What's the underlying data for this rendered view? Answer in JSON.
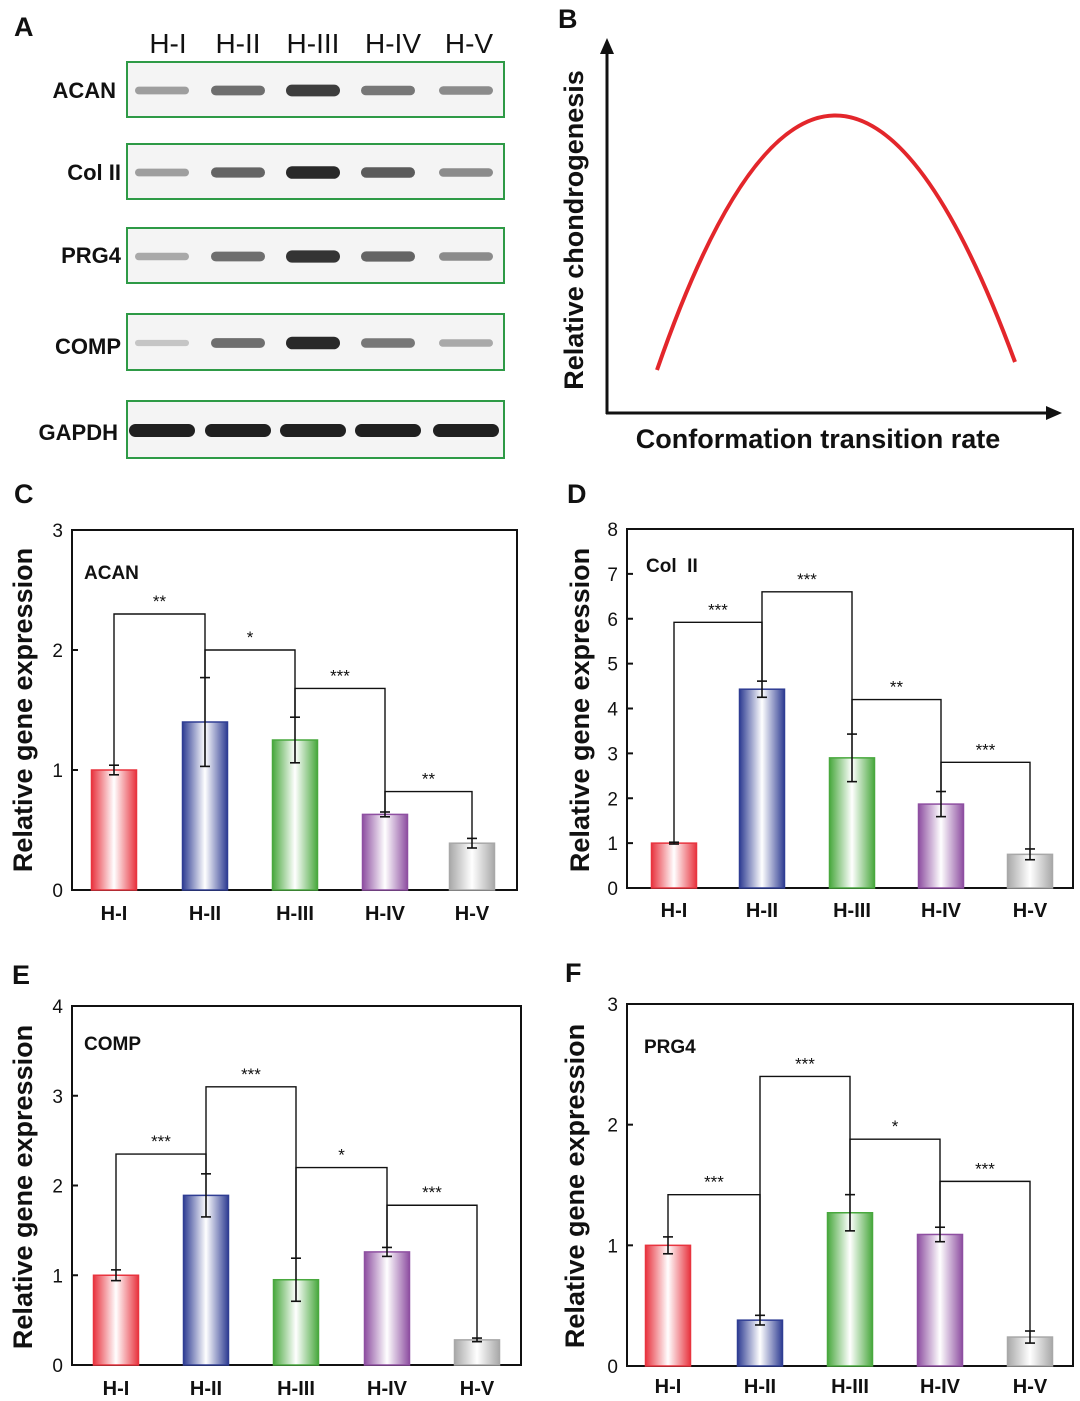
{
  "panel_a": {
    "letter": "A",
    "lanes": [
      "H-I",
      "H-II",
      "H-III",
      "H-IV",
      "H-V"
    ],
    "rows": [
      {
        "label": "ACAN",
        "intensity": [
          0.35,
          0.6,
          0.85,
          0.55,
          0.45
        ]
      },
      {
        "label": "Col II",
        "intensity": [
          0.35,
          0.65,
          0.95,
          0.7,
          0.45
        ]
      },
      {
        "label": "PRG4",
        "intensity": [
          0.3,
          0.6,
          0.9,
          0.65,
          0.45
        ]
      },
      {
        "label": "COMP",
        "intensity": [
          0.15,
          0.6,
          0.95,
          0.55,
          0.3
        ]
      },
      {
        "label": "GAPDH",
        "intensity": [
          1,
          1,
          1,
          1,
          1
        ]
      }
    ]
  },
  "panel_b": {
    "letter": "B",
    "ylabel": "Relative chondrogenesis",
    "xlabel": "Conformation transition rate"
  },
  "chart_data": [
    {
      "panel": "C",
      "type": "bar",
      "gene": "ACAN",
      "categories": [
        "H-I",
        "H-II",
        "H-III",
        "H-IV",
        "H-V"
      ],
      "values": [
        1.0,
        1.4,
        1.25,
        0.63,
        0.39
      ],
      "errors": [
        0.04,
        0.37,
        0.19,
        0.02,
        0.04
      ],
      "ylabel": "Relative gene expression",
      "ylim": [
        0,
        3
      ],
      "yticks": [
        0,
        1,
        2,
        3
      ],
      "significance": [
        {
          "from": 0,
          "to": 1,
          "label": "**",
          "level": 2.3
        },
        {
          "from": 1,
          "to": 2,
          "label": "*",
          "level": 2.0
        },
        {
          "from": 2,
          "to": 3,
          "label": "***",
          "level": 1.68
        },
        {
          "from": 3,
          "to": 4,
          "label": "**",
          "level": 0.82
        }
      ]
    },
    {
      "panel": "D",
      "type": "bar",
      "gene": "Col  II",
      "categories": [
        "H-I",
        "H-II",
        "H-III",
        "H-IV",
        "H-V"
      ],
      "values": [
        1.0,
        4.43,
        2.9,
        1.87,
        0.75
      ],
      "errors": [
        0.02,
        0.18,
        0.53,
        0.28,
        0.12
      ],
      "ylabel": "Relative gene expression",
      "ylim": [
        0,
        8
      ],
      "yticks": [
        0,
        1,
        2,
        3,
        4,
        5,
        6,
        7,
        8
      ],
      "significance": [
        {
          "from": 0,
          "to": 1,
          "label": "***",
          "level": 5.92
        },
        {
          "from": 1,
          "to": 2,
          "label": "***",
          "level": 6.6
        },
        {
          "from": 2,
          "to": 3,
          "label": "**",
          "level": 4.2
        },
        {
          "from": 3,
          "to": 4,
          "label": "***",
          "level": 2.8
        }
      ]
    },
    {
      "panel": "E",
      "type": "bar",
      "gene": "COMP",
      "categories": [
        "H-I",
        "H-II",
        "H-III",
        "H-IV",
        "H-V"
      ],
      "values": [
        1.0,
        1.89,
        0.95,
        1.26,
        0.28
      ],
      "errors": [
        0.06,
        0.24,
        0.24,
        0.05,
        0.02
      ],
      "ylabel": "Relative gene expression",
      "ylim": [
        0,
        4
      ],
      "yticks": [
        0,
        1,
        2,
        3,
        4
      ],
      "significance": [
        {
          "from": 0,
          "to": 1,
          "label": "***",
          "level": 2.35
        },
        {
          "from": 1,
          "to": 2,
          "label": "***",
          "level": 3.1
        },
        {
          "from": 2,
          "to": 3,
          "label": "*",
          "level": 2.2
        },
        {
          "from": 3,
          "to": 4,
          "label": "***",
          "level": 1.78
        }
      ]
    },
    {
      "panel": "F",
      "type": "bar",
      "gene": "PRG4",
      "categories": [
        "H-I",
        "H-II",
        "H-III",
        "H-IV",
        "H-V"
      ],
      "values": [
        1.0,
        0.38,
        1.27,
        1.09,
        0.24
      ],
      "errors": [
        0.07,
        0.04,
        0.15,
        0.06,
        0.05
      ],
      "ylabel": "Relative gene expression",
      "ylim": [
        0,
        3
      ],
      "yticks": [
        0,
        1,
        2,
        3
      ],
      "significance": [
        {
          "from": 0,
          "to": 1,
          "label": "***",
          "level": 1.42
        },
        {
          "from": 1,
          "to": 2,
          "label": "***",
          "level": 2.4
        },
        {
          "from": 2,
          "to": 3,
          "label": "*",
          "level": 1.88
        },
        {
          "from": 3,
          "to": 4,
          "label": "***",
          "level": 1.53
        }
      ]
    }
  ],
  "bar_colors": [
    "#e8343f",
    "#2f3d93",
    "#49a83e",
    "#8e4fa1",
    "#a8a8a8"
  ],
  "blot_frame_color": "#2e9a46",
  "curve_color": "#e3262b"
}
